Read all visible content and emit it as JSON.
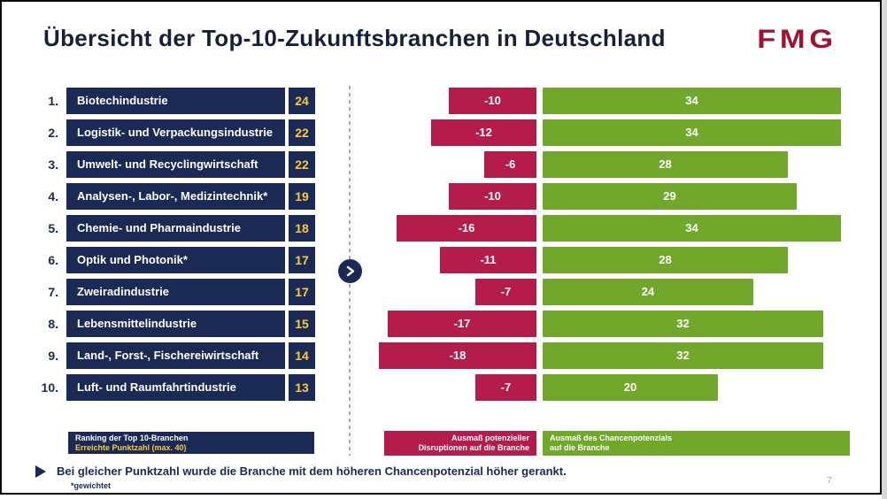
{
  "title": "Übersicht der Top-10-Zukunftsbranchen in Deutschland",
  "logo": "FMG",
  "page_number": "7",
  "colors": {
    "navy": "#1B2A55",
    "title_navy": "#172039",
    "gold": "#FACA3E",
    "red": "#B41C4B",
    "green": "#71A82C",
    "logo_red": "#9E1430"
  },
  "icons": {
    "chevron": "chevron-right-icon",
    "bullet": "triangle-right-icon"
  },
  "chart_data": {
    "type": "bar",
    "orientation": "horizontal-diverging",
    "title": "Übersicht der Top-10-Zukunftsbranchen in Deutschland",
    "ranks": [
      "1.",
      "2.",
      "3.",
      "4.",
      "5.",
      "6.",
      "7.",
      "8.",
      "9.",
      "10."
    ],
    "categories": [
      "Biotechindustrie",
      "Logistik- und Verpackungsindustrie",
      "Umwelt- und Recyclingwirtschaft",
      "Analysen-, Labor-, Medizintechnik*",
      "Chemie- und Pharmaindustrie",
      "Optik und Photonik*",
      "Zweiradindustrie",
      "Lebensmittelindustrie",
      "Land-, Forst-, Fischereiwirtschaft",
      "Luft- und Raumfahrtindustrie"
    ],
    "series": [
      {
        "name": "Erreichte Punktzahl (max. 40)",
        "values": [
          24,
          22,
          22,
          19,
          18,
          17,
          17,
          15,
          14,
          13
        ]
      },
      {
        "name": "Ausmaß potenzieller Disruptionen auf die Branche",
        "values": [
          -10,
          -12,
          -6,
          -10,
          -16,
          -11,
          -7,
          -17,
          -18,
          -7
        ]
      },
      {
        "name": "Ausmaß des Chancenpotenzials auf die Branche",
        "values": [
          34,
          34,
          28,
          29,
          34,
          28,
          24,
          32,
          32,
          20
        ]
      }
    ],
    "xlim": [
      -20,
      40
    ],
    "value_labels": "inside-center",
    "grid": false,
    "legend_position": "bottom"
  },
  "legend": {
    "ranking": {
      "line1": "Ranking der Top 10-Branchen",
      "line2": "Erreichte Punktzahl (max. 40)"
    },
    "disruption": {
      "line1": "Ausmaß potenzieller",
      "line2": "Disruptionen auf die Branche"
    },
    "chance": {
      "line1": "Ausmaß des Chancenpotenzials",
      "line2": "auf die Branche"
    }
  },
  "footnote": {
    "text": "Bei gleicher Punktzahl wurde die Branche mit dem höheren Chancenpotenzial höher gerankt.",
    "asterisk": "*gewichtet"
  }
}
